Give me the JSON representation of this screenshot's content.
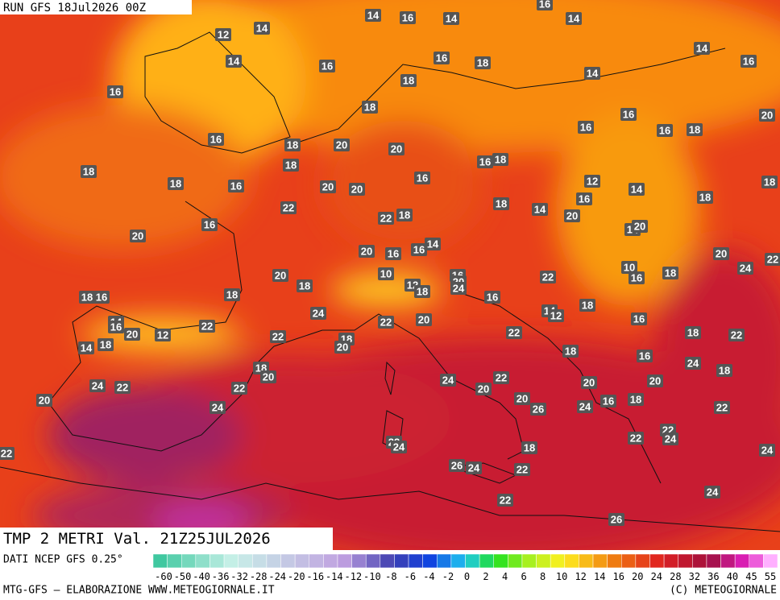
{
  "header": {
    "run": "RUN GFS 18Jul2026 00Z",
    "title": "TMP 2 METRI Val. 21Z25JUL2026"
  },
  "footer": {
    "source": "DATI NCEP GFS 0.25°",
    "credit": "MTG-GFS — ELABORAZIONE WWW.METEOGIORNALE.IT",
    "copyright": "(C) METEOGIORNALE"
  },
  "colorbar": {
    "ticks": [
      -60,
      -50,
      -40,
      -36,
      -32,
      -28,
      -24,
      -20,
      -16,
      -14,
      -12,
      -10,
      -8,
      -6,
      -4,
      -2,
      0,
      2,
      4,
      6,
      8,
      10,
      12,
      14,
      16,
      20,
      24,
      28,
      32,
      36,
      40,
      45,
      55
    ]
  },
  "map_labels": [
    "14",
    "16",
    "14",
    "16",
    "14",
    "12",
    "14",
    "14",
    "16",
    "16",
    "18",
    "18",
    "14",
    "14",
    "16",
    "16",
    "18",
    "16",
    "16",
    "16",
    "18",
    "20",
    "16",
    "18",
    "20",
    "20",
    "18",
    "16",
    "18",
    "18",
    "18",
    "16",
    "20",
    "20",
    "16",
    "12",
    "14",
    "18",
    "18",
    "16",
    "22",
    "22",
    "18",
    "18",
    "14",
    "20",
    "14",
    "20",
    "16",
    "20",
    "20",
    "16",
    "14",
    "16",
    "20",
    "24",
    "22",
    "20",
    "10",
    "18",
    "16",
    "20",
    "22",
    "10",
    "16",
    "18",
    "12",
    "24",
    "18",
    "18",
    "18",
    "16",
    "16",
    "18",
    "24",
    "14",
    "12",
    "16",
    "14",
    "16",
    "20",
    "12",
    "22",
    "22",
    "20",
    "22",
    "18",
    "22",
    "22",
    "18",
    "20",
    "14",
    "18",
    "18",
    "16",
    "24",
    "18",
    "18",
    "20",
    "24",
    "22",
    "20",
    "20",
    "24",
    "22",
    "22",
    "20",
    "20",
    "24",
    "20",
    "26",
    "24",
    "16",
    "18",
    "22",
    "22",
    "22",
    "24",
    "22",
    "24",
    "18",
    "22",
    "24",
    "26",
    "24",
    "22",
    "24",
    "22",
    "26"
  ]
}
